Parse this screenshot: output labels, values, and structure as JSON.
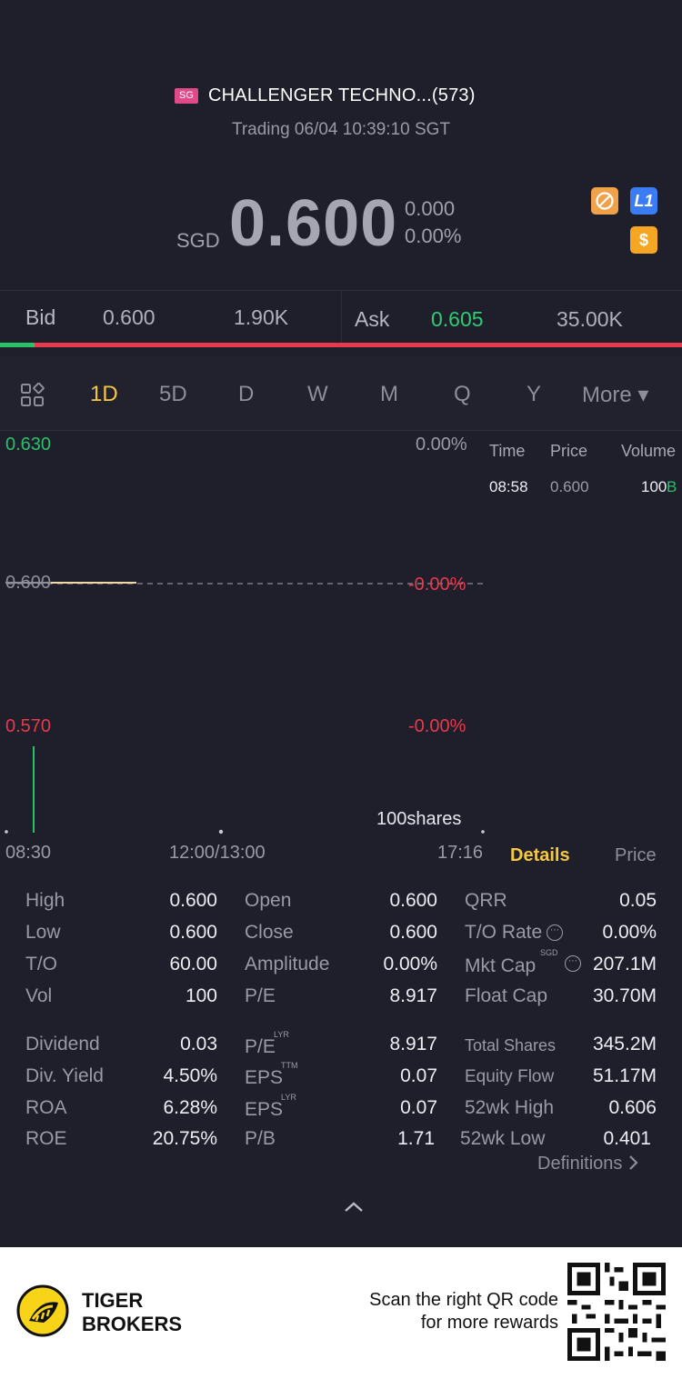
{
  "header": {
    "market_badge": "SG",
    "title": "CHALLENGER TECHNO...(573)",
    "status": "Trading 06/04 10:39:10 SGT"
  },
  "quote": {
    "currency": "SGD",
    "price": "0.600",
    "change": "0.000",
    "change_pct": "0.00%"
  },
  "badges": {
    "no_short_icon": "no-shorting-icon",
    "l1_label": "L1",
    "dollar_label": "$"
  },
  "bidask": {
    "bid_label": "Bid",
    "bid_price": "0.600",
    "bid_size": "1.90K",
    "ask_label": "Ask",
    "ask_price": "0.605",
    "ask_size": "35.00K",
    "bid_share": 0.05
  },
  "tabs": [
    "1D",
    "5D",
    "D",
    "W",
    "M",
    "Q",
    "Y",
    "More ▾"
  ],
  "active_tab": "1D",
  "chart": {
    "y_high": "0.630",
    "y_mid": "0.600",
    "y_low": "0.570",
    "pct_high": "0.00%",
    "pct_mid": "-0.00%",
    "pct_low": "-0.00%",
    "volume_label": "100shares",
    "times": [
      "08:30",
      "12:00/13:00",
      "17:16"
    ]
  },
  "ticks": {
    "headers": [
      "Time",
      "Price",
      "Volume"
    ],
    "rows": [
      {
        "time": "08:58",
        "price": "0.600",
        "volume": "100",
        "flag": "B"
      }
    ]
  },
  "detail_tabs": {
    "details": "Details",
    "price": "Price"
  },
  "stats": {
    "col1": [
      {
        "label": "High",
        "value": "0.600"
      },
      {
        "label": "Low",
        "value": "0.600"
      },
      {
        "label": "T/O",
        "value": "60.00"
      },
      {
        "label": "Vol",
        "value": "100"
      },
      {
        "label": "Dividend",
        "value": "0.03"
      },
      {
        "label": "Div. Yield",
        "value": "4.50%"
      },
      {
        "label": "ROA",
        "value": "6.28%"
      },
      {
        "label": "ROE",
        "value": "20.75%"
      }
    ],
    "col2": [
      {
        "label": "Open",
        "value": "0.600",
        "sup": ""
      },
      {
        "label": "Close",
        "value": "0.600",
        "sup": ""
      },
      {
        "label": "Amplitude",
        "value": "0.00%",
        "sup": ""
      },
      {
        "label": "P/E",
        "value": "8.917",
        "sup": ""
      },
      {
        "label": "P/E",
        "value": "8.917",
        "sup": "LYR"
      },
      {
        "label": "EPS",
        "value": "0.07",
        "sup": "TTM"
      },
      {
        "label": "EPS",
        "value": "0.07",
        "sup": "LYR"
      },
      {
        "label": "P/B",
        "value": "1.71",
        "sup": ""
      }
    ],
    "col3": [
      {
        "label": "QRR",
        "value": "0.05",
        "sup": ""
      },
      {
        "label": "T/O Rate",
        "value": "0.00%",
        "sup": ""
      },
      {
        "label": "Mkt Cap",
        "value": "207.1M",
        "sup": "SGD"
      },
      {
        "label": "Float Cap",
        "value": "30.70M",
        "sup": ""
      },
      {
        "label": "Total Shares",
        "value": "345.2M",
        "sup": ""
      },
      {
        "label": "Equity Flow",
        "value": "51.17M",
        "sup": ""
      },
      {
        "label": "52wk High",
        "value": "0.606",
        "sup": ""
      },
      {
        "label": "52wk Low",
        "value": "0.401",
        "sup": ""
      }
    ],
    "info_glyph": "⋯",
    "definitions": "Definitions"
  },
  "footer": {
    "brand_line1": "TIGER",
    "brand_line2": "BROKERS",
    "promo_line1": "Scan the right QR code",
    "promo_line2": "for more rewards"
  }
}
